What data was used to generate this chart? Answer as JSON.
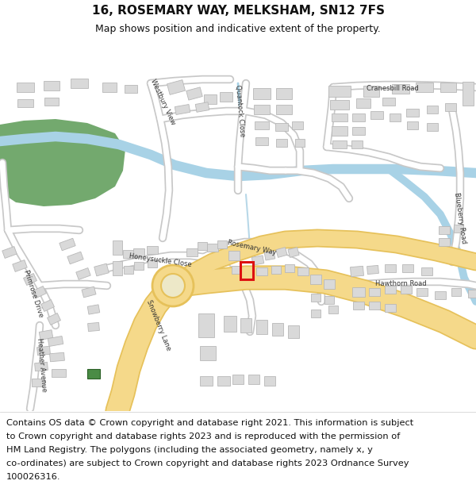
{
  "title": "16, ROSEMARY WAY, MELKSHAM, SN12 7FS",
  "subtitle": "Map shows position and indicative extent of the property.",
  "title_fontsize": 11,
  "subtitle_fontsize": 9,
  "footer_text": "Contains OS data © Crown copyright and database right 2021. This information is subject to Crown copyright and database rights 2023 and is reproduced with the permission of HM Land Registry. The polygons (including the associated geometry, namely x, y co-ordinates) are subject to Crown copyright and database rights 2023 Ordnance Survey 100026316.",
  "footer_fontsize": 8.2,
  "map_bg": "#f2f1ee",
  "road_color": "#ffffff",
  "road_stroke": "#c8c8c8",
  "major_road_fill": "#f5d98a",
  "major_road_stroke": "#e6c15a",
  "water_color": "#a8d2e6",
  "green_color": "#73a96e",
  "building_fill": "#d9d9d9",
  "building_stroke": "#b8b8b8",
  "highlight_color": "#dd1111",
  "title_bg": "#ffffff",
  "footer_bg": "#ffffff"
}
